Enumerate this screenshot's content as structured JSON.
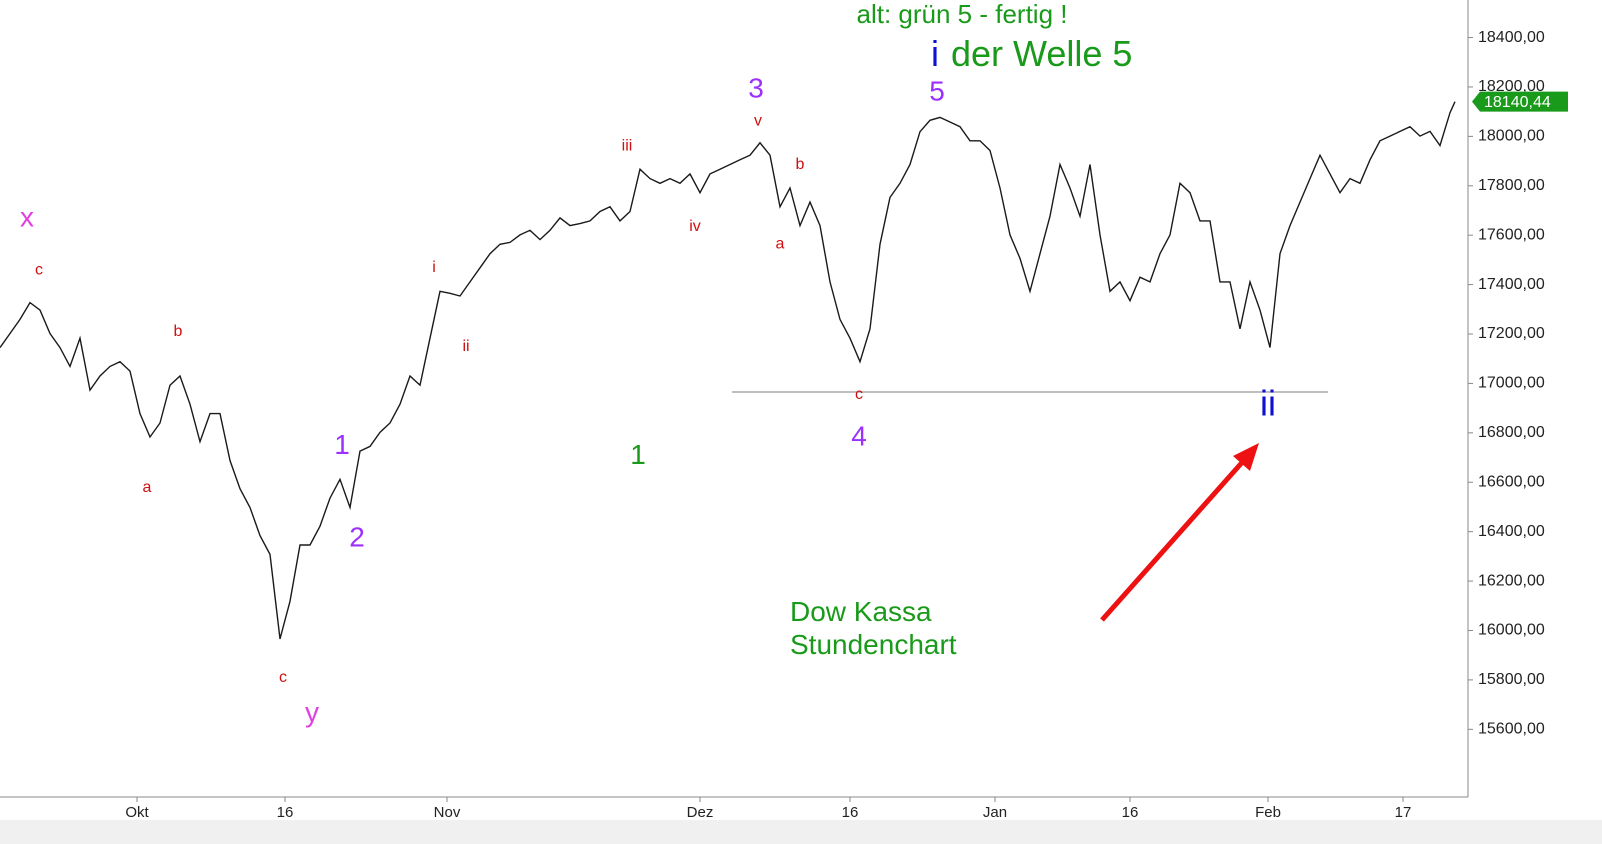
{
  "chart_data": {
    "type": "line",
    "series": [
      {
        "name": "Dow Kassa",
        "color": "#1a1a1a",
        "values": [
          17145,
          17202,
          17259,
          17327,
          17297,
          17202,
          17145,
          17069,
          17183,
          16973,
          17030,
          17069,
          17088,
          17050,
          16878,
          16783,
          16840,
          16993,
          17030,
          16916,
          16764,
          16878,
          16878,
          16688,
          16574,
          16498,
          16384,
          16308,
          15966,
          16118,
          16346,
          16346,
          16422,
          16536,
          16612,
          16498,
          16726,
          16745,
          16802,
          16840,
          16916,
          17030,
          16993,
          17183,
          17373,
          17365,
          17354,
          17411,
          17468,
          17525,
          17563,
          17571,
          17601,
          17620,
          17582,
          17620,
          17670,
          17639,
          17647,
          17658,
          17696,
          17715,
          17658,
          17696,
          17867,
          17829,
          17810,
          17829,
          17810,
          17848,
          17772,
          17848,
          17867,
          17886,
          17905,
          17924,
          17974,
          17924,
          17715,
          17791,
          17639,
          17734,
          17639,
          17411,
          17259,
          17183,
          17088,
          17221,
          17563,
          17753,
          17810,
          17886,
          18019,
          18065,
          18077,
          18058,
          18039,
          17982,
          17982,
          17943,
          17791,
          17601,
          17506,
          17373,
          17525,
          17677,
          17886,
          17791,
          17677,
          17886,
          17601,
          17373,
          17411,
          17335,
          17430,
          17411,
          17525,
          17601,
          17810,
          17772,
          17658,
          17658,
          17411,
          17411,
          17221,
          17411,
          17297,
          17145,
          17525,
          17639,
          17734,
          17829,
          17924,
          17848,
          17772,
          17829,
          17810,
          17905,
          17982,
          18001,
          18020,
          18039,
          18001,
          18020,
          17963,
          18096,
          18140.44
        ],
        "value_labels": [
          null,
          null,
          null,
          null,
          null,
          null,
          null,
          null,
          null,
          null,
          null,
          null,
          null,
          null,
          null,
          null,
          null,
          null,
          null,
          null,
          null,
          null,
          null,
          null,
          null,
          null,
          null,
          null,
          null,
          null,
          null,
          null,
          null,
          null,
          null,
          null,
          null,
          null,
          null,
          null,
          null,
          null,
          null,
          null,
          null,
          null,
          null,
          null,
          null,
          null,
          null,
          null,
          null,
          null,
          null,
          null,
          null,
          null,
          null,
          null,
          null,
          null,
          null,
          null,
          null,
          null,
          null,
          null,
          null,
          null,
          null,
          null,
          null,
          null,
          null,
          null,
          null,
          null,
          null,
          null,
          null,
          null,
          null,
          null,
          null,
          null,
          null,
          null,
          null,
          null,
          null,
          null,
          null,
          null,
          null,
          null,
          null,
          null,
          null,
          null,
          null,
          null,
          null,
          null,
          null,
          null,
          null,
          null,
          null,
          null,
          null,
          null,
          null,
          null,
          null,
          null,
          null,
          null,
          null,
          null,
          null,
          null,
          null,
          null,
          null,
          null,
          null,
          null,
          null,
          null,
          null,
          null,
          null,
          null,
          null,
          null,
          null,
          null,
          null,
          null,
          null,
          null,
          null,
          null,
          null,
          null,
          "18140,44"
        ]
      }
    ],
    "x": [
      0,
      1,
      2,
      3,
      4,
      5,
      6,
      7,
      8,
      9,
      10,
      11,
      12,
      13,
      14,
      15,
      16,
      17,
      18,
      19,
      20,
      21,
      22,
      23,
      24,
      25,
      26,
      27,
      28,
      29,
      30,
      31,
      32,
      33,
      34,
      35,
      36,
      37,
      38,
      39,
      40,
      41,
      42,
      43,
      44,
      45,
      46,
      47,
      48,
      49,
      50,
      51,
      52,
      53,
      54,
      55,
      56,
      57,
      58,
      59,
      60,
      61,
      62,
      63,
      64,
      65,
      66,
      67,
      68,
      69,
      70,
      71,
      72,
      73,
      74,
      75,
      76,
      77,
      78,
      79,
      80,
      81,
      82,
      83,
      84,
      85,
      86,
      87,
      88,
      89,
      90,
      91,
      92,
      93,
      94,
      95,
      96,
      97,
      98,
      99,
      100,
      101,
      102,
      103,
      104,
      105,
      106,
      107,
      108,
      109,
      110,
      111,
      112,
      113,
      114,
      115,
      116,
      117,
      118,
      119,
      120,
      121,
      122,
      123,
      124,
      125,
      126,
      127,
      128,
      129,
      130,
      131,
      132,
      133,
      134,
      135,
      136,
      137,
      138,
      139,
      140,
      141,
      142,
      143,
      144,
      145,
      145.5
    ],
    "xlim": [
      0,
      146.8
    ],
    "xticks": [
      {
        "value": 13.7,
        "label": "Okt"
      },
      {
        "value": 28.5,
        "label": "16"
      },
      {
        "value": 44.7,
        "label": "Nov"
      },
      {
        "value": 70,
        "label": "Dez"
      },
      {
        "value": 85,
        "label": "16"
      },
      {
        "value": 99.5,
        "label": "Jan"
      },
      {
        "value": 113,
        "label": "16"
      },
      {
        "value": 126.8,
        "label": "Feb"
      },
      {
        "value": 140.3,
        "label": "17"
      }
    ],
    "ylim": [
      15326,
      18552
    ],
    "yticks": [
      {
        "value": 15600,
        "label": "15600,00"
      },
      {
        "value": 15800,
        "label": "15800,00"
      },
      {
        "value": 16000,
        "label": "16000,00"
      },
      {
        "value": 16200,
        "label": "16200,00"
      },
      {
        "value": 16400,
        "label": "16400,00"
      },
      {
        "value": 16600,
        "label": "16600,00"
      },
      {
        "value": 16800,
        "label": "16800,00"
      },
      {
        "value": 17000,
        "label": "17000,00"
      },
      {
        "value": 17200,
        "label": "17200,00"
      },
      {
        "value": 17400,
        "label": "17400,00"
      },
      {
        "value": 17600,
        "label": "17600,00"
      },
      {
        "value": 17800,
        "label": "17800,00"
      },
      {
        "value": 18000,
        "label": "18000,00"
      },
      {
        "value": 18200,
        "label": "18200,00"
      },
      {
        "value": 18400,
        "label": "18400,00"
      }
    ],
    "annotations": [
      {
        "text": "x",
        "color": "#e040e0",
        "x": 2.7,
        "y": 17666
      },
      {
        "text": "c",
        "color": "#d01010",
        "x": 3.9,
        "y": 17457
      },
      {
        "text": "b",
        "color": "#d01010",
        "x": 17.8,
        "y": 17209
      },
      {
        "text": "a",
        "color": "#d01010",
        "x": 14.7,
        "y": 16578
      },
      {
        "text": "c",
        "color": "#d01010",
        "x": 28.3,
        "y": 15809
      },
      {
        "text": "y",
        "color": "#e040e0",
        "x": 31.2,
        "y": 15661
      },
      {
        "text": "1",
        "color": "#9b30ff",
        "x": 34.2,
        "y": 16745
      },
      {
        "text": "2",
        "color": "#9b30ff",
        "x": 35.7,
        "y": 16369
      },
      {
        "text": "i",
        "color": "#d01010",
        "x": 43.4,
        "y": 17468
      },
      {
        "text": "ii",
        "color": "#d01010",
        "x": 46.6,
        "y": 17148
      },
      {
        "text": "iii",
        "color": "#d01010",
        "x": 62.7,
        "y": 17959
      },
      {
        "text": "iv",
        "color": "#d01010",
        "x": 69.5,
        "y": 17635
      },
      {
        "text": "3",
        "color": "#9b30ff",
        "x": 75.6,
        "y": 18187
      },
      {
        "text": "v",
        "color": "#d01010",
        "x": 75.8,
        "y": 18061
      },
      {
        "text": "b",
        "color": "#d01010",
        "x": 80,
        "y": 17886
      },
      {
        "text": "a",
        "color": "#d01010",
        "x": 78,
        "y": 17563
      },
      {
        "text": "c",
        "color": "#d01010",
        "x": 85.9,
        "y": 16954
      },
      {
        "text": "4",
        "color": "#9b30ff",
        "x": 85.9,
        "y": 16779
      },
      {
        "text": "5",
        "color": "#9b30ff",
        "x": 93.7,
        "y": 18176
      },
      {
        "text": "1",
        "color": "#1a9a1a",
        "x": 63.8,
        "y": 16703
      },
      {
        "text": "ii",
        "color": "#1010d0",
        "x": 126.8,
        "y": 16909
      },
      {
        "text": "alt: grün 5 - fertig !",
        "color": "#1a9a1a",
        "x": 96.2,
        "y": 18487
      },
      {
        "text": "i",
        "color": "#1010d0",
        "x": 93.5,
        "y": 18324
      },
      {
        "text": "der Welle 5",
        "color": "#1a9a1a",
        "x": 104.8,
        "y": 18324
      },
      {
        "text": "Dow Kassa",
        "color": "#1a9a1a",
        "x": 79,
        "y": 16068
      },
      {
        "text": "Stundenchart",
        "color": "#1a9a1a",
        "x": 79,
        "y": 15935
      }
    ]
  }
}
